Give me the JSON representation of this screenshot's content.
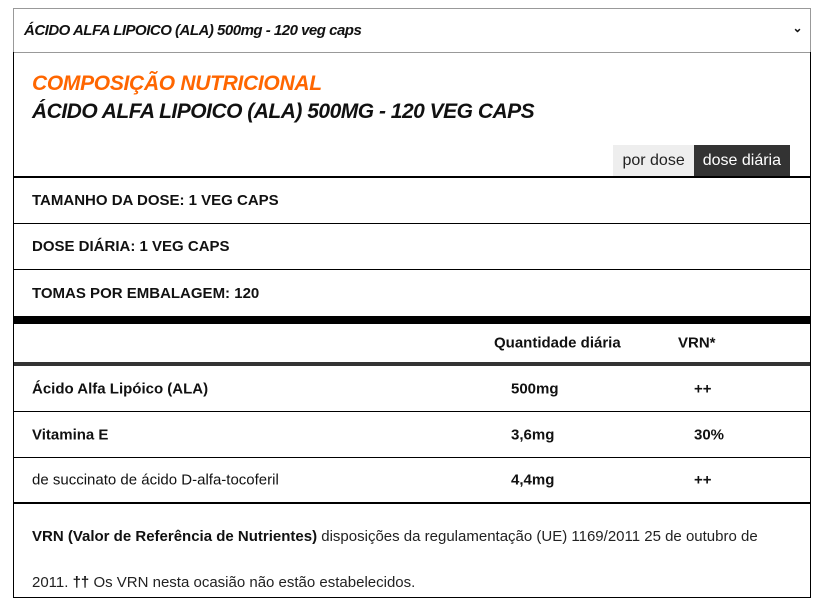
{
  "select": {
    "value": "ÁCIDO ALFA LIPOICO (ALA) 500mg - 120 veg caps",
    "icon": "chevron-down-icon"
  },
  "header": {
    "section": "COMPOSIÇÃO NUTRICIONAL",
    "product": "ÁCIDO ALFA LIPOICO (ALA) 500MG - 120 VEG CAPS",
    "accent": "#ff6600"
  },
  "tabs": [
    {
      "label": "por dose",
      "active": false
    },
    {
      "label": "dose diária",
      "active": true
    }
  ],
  "info": [
    "TAMANHO DA DOSE: 1 VEG CAPS",
    "DOSE DIÁRIA: 1 VEG CAPS",
    "TOMAS POR EMBALAGEM: 120"
  ],
  "table": {
    "headers": [
      "",
      "Quantidade diária",
      "VRN*"
    ],
    "rows": [
      [
        "Ácido Alfa Lipóico (ALA)",
        "500mg",
        "++"
      ],
      [
        "Vitamina E",
        "3,6mg",
        "30%"
      ],
      [
        "de succinato de ácido D-alfa-tocoferil",
        "4,4mg",
        "++"
      ]
    ]
  },
  "footer": {
    "bold": "VRN (Valor de Referência de Nutrientes)",
    "text1": " disposições da regulamentação (UE) 1169/2011 25 de outubro de 2011. ",
    "bold2": "††",
    "text2": " Os VRN nesta ocasião não estão estabelecidos."
  }
}
